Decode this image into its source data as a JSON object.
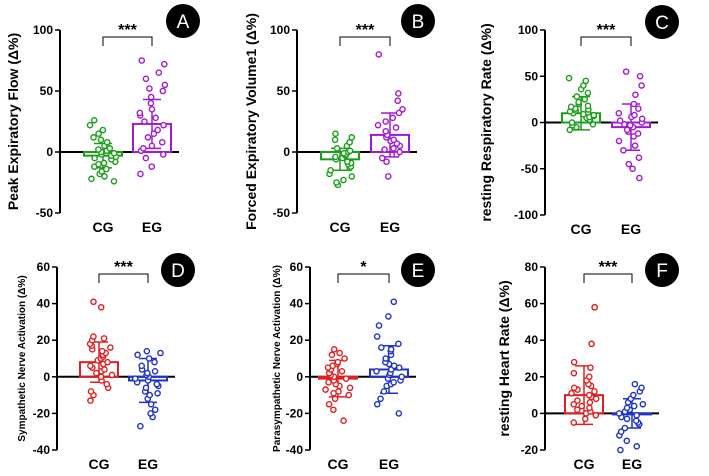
{
  "chart_data": [
    {
      "panel": "A",
      "type": "bar",
      "ylabel": "Peak Expiratory Flow (Δ%)",
      "ylabel_size": "large",
      "ylim": [
        -50,
        100
      ],
      "yticks": [
        -50,
        0,
        50,
        100
      ],
      "categories": [
        "CG",
        "EG"
      ],
      "colors": [
        "#1a9e1a",
        "#a21ad0"
      ],
      "significance": "***",
      "series": [
        {
          "name": "CG",
          "mean": -3,
          "sd": 10,
          "points": [
            -24,
            -22,
            -20,
            -18,
            -16,
            -14,
            -12,
            -10,
            -9,
            -8,
            -6,
            -5,
            -4,
            -3,
            -2,
            -1,
            0,
            1,
            2,
            3,
            5,
            8,
            10,
            12,
            15,
            18,
            22,
            26
          ]
        },
        {
          "name": "EG",
          "mean": 23,
          "sd": 20,
          "points": [
            -18,
            -12,
            -5,
            -2,
            1,
            3,
            5,
            8,
            12,
            15,
            18,
            22,
            25,
            28,
            30,
            32,
            35,
            40,
            45,
            50,
            52,
            55,
            60,
            65,
            72,
            75
          ]
        }
      ]
    },
    {
      "panel": "B",
      "type": "bar",
      "ylabel": "Forced Expiratory Volume1 (Δ%)",
      "ylabel_size": "large",
      "ylim": [
        -50,
        100
      ],
      "yticks": [
        -50,
        0,
        50,
        100
      ],
      "categories": [
        "CG",
        "EG"
      ],
      "colors": [
        "#1a9e1a",
        "#a21ad0"
      ],
      "significance": "***",
      "series": [
        {
          "name": "CG",
          "mean": -6,
          "sd": 9,
          "points": [
            -27,
            -25,
            -23,
            -20,
            -18,
            -15,
            -13,
            -12,
            -10,
            -9,
            -8,
            -6,
            -5,
            -4,
            -3,
            -2,
            -1,
            0,
            1,
            3,
            5,
            8,
            10,
            12,
            15
          ]
        },
        {
          "name": "EG",
          "mean": 14,
          "sd": 18,
          "points": [
            -20,
            -8,
            -5,
            -2,
            0,
            2,
            3,
            5,
            7,
            9,
            10,
            12,
            14,
            17,
            20,
            22,
            25,
            28,
            32,
            35,
            42,
            48,
            80
          ]
        }
      ]
    },
    {
      "panel": "C",
      "type": "bar",
      "ylabel": "resting Respiratory Rate (Δ%)",
      "ylabel_size": "large",
      "ylim": [
        -100,
        100
      ],
      "yticks": [
        -100,
        -50,
        0,
        50,
        100
      ],
      "categories": [
        "CG",
        "EG"
      ],
      "colors": [
        "#1a9e1a",
        "#a21ad0"
      ],
      "significance": "***",
      "series": [
        {
          "name": "CG",
          "mean": 10,
          "sd": 18,
          "points": [
            -8,
            -5,
            -3,
            -2,
            0,
            2,
            3,
            5,
            6,
            7,
            8,
            9,
            10,
            11,
            12,
            13,
            14,
            15,
            17,
            18,
            20,
            22,
            25,
            28,
            32,
            36,
            40,
            45,
            48
          ]
        },
        {
          "name": "EG",
          "mean": -5,
          "sd": 25,
          "points": [
            -60,
            -50,
            -45,
            -38,
            -30,
            -25,
            -20,
            -15,
            -12,
            -10,
            -8,
            -5,
            -3,
            -2,
            0,
            2,
            4,
            6,
            8,
            10,
            15,
            20,
            30,
            40,
            50,
            55
          ]
        }
      ]
    },
    {
      "panel": "D",
      "type": "bar",
      "ylabel": "Sympathetic Nerve Activation (Δ%)",
      "ylabel_size": "small",
      "ylim": [
        -40,
        60
      ],
      "yticks": [
        -40,
        -20,
        0,
        20,
        40,
        60
      ],
      "categories": [
        "CG",
        "EG"
      ],
      "colors": [
        "#e02020",
        "#1f33c4"
      ],
      "significance": "***",
      "series": [
        {
          "name": "CG",
          "mean": 8,
          "sd": 11,
          "points": [
            -13,
            -10,
            -8,
            -6,
            -4,
            -2,
            0,
            1,
            2,
            3,
            4,
            5,
            6,
            7,
            8,
            9,
            10,
            11,
            12,
            13,
            14,
            15,
            16,
            17,
            18,
            20,
            21,
            22,
            38,
            41
          ]
        },
        {
          "name": "EG",
          "mean": -2,
          "sd": 12,
          "points": [
            -27,
            -22,
            -20,
            -18,
            -15,
            -12,
            -10,
            -9,
            -8,
            -6,
            -5,
            -4,
            -3,
            -2,
            -1,
            0,
            1,
            2,
            3,
            4,
            6,
            8,
            10,
            12,
            13,
            14
          ]
        }
      ]
    },
    {
      "panel": "E",
      "type": "bar",
      "ylabel": "Parasympathetic Nerve Activation (Δ%)",
      "ylabel_size": "small",
      "ylim": [
        -40,
        60
      ],
      "yticks": [
        -40,
        -20,
        0,
        20,
        40,
        60
      ],
      "categories": [
        "CG",
        "EG"
      ],
      "colors": [
        "#e02020",
        "#1f33c4"
      ],
      "significance": "*",
      "series": [
        {
          "name": "CG",
          "mean": -1,
          "sd": 10,
          "points": [
            -24,
            -18,
            -15,
            -12,
            -10,
            -9,
            -8,
            -7,
            -6,
            -5,
            -4,
            -3,
            -2,
            -1,
            0,
            1,
            2,
            3,
            4,
            5,
            6,
            7,
            8,
            10,
            12,
            13,
            15
          ]
        },
        {
          "name": "EG",
          "mean": 4,
          "sd": 13,
          "points": [
            -20,
            -15,
            -12,
            -8,
            -5,
            -4,
            -3,
            -2,
            -1,
            0,
            1,
            2,
            3,
            4,
            5,
            6,
            7,
            8,
            10,
            12,
            14,
            15,
            16,
            18,
            22,
            28,
            33,
            41
          ]
        }
      ]
    },
    {
      "panel": "F",
      "type": "bar",
      "ylabel": "resting Heart Rate (Δ%)",
      "ylabel_size": "large",
      "ylim": [
        -20,
        80
      ],
      "yticks": [
        -20,
        0,
        20,
        40,
        60,
        80
      ],
      "categories": [
        "CG",
        "EG"
      ],
      "colors": [
        "#e02020",
        "#1f33c4"
      ],
      "significance": "***",
      "series": [
        {
          "name": "CG",
          "mean": 10,
          "sd": 16,
          "points": [
            -5,
            -3,
            -1,
            0,
            1,
            2,
            3,
            4,
            5,
            6,
            7,
            8,
            9,
            10,
            11,
            12,
            13,
            14,
            15,
            16,
            18,
            20,
            22,
            25,
            28,
            38,
            58,
            58
          ]
        },
        {
          "name": "EG",
          "mean": 0,
          "sd": 8,
          "points": [
            -20,
            -18,
            -15,
            -12,
            -10,
            -8,
            -6,
            -5,
            -4,
            -3,
            -2,
            -1,
            0,
            1,
            2,
            3,
            4,
            5,
            6,
            8,
            10,
            12,
            14,
            16
          ]
        }
      ]
    }
  ]
}
